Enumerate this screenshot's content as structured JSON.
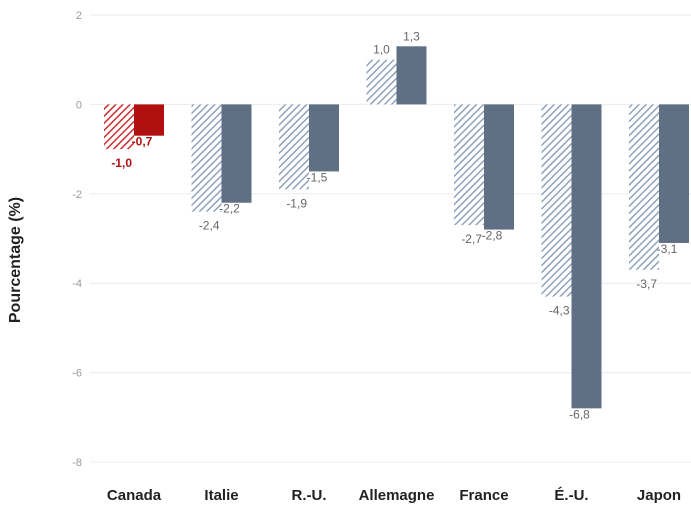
{
  "chart_data": {
    "type": "bar",
    "categories": [
      "Canada",
      "Italie",
      "R.-U.",
      "Allemagne",
      "France",
      "É.-U.",
      "Japon"
    ],
    "series": [
      {
        "style": "hatched",
        "values": [
          -1.0,
          -2.4,
          -1.9,
          1.0,
          -2.7,
          -4.3,
          -3.7
        ],
        "labels": [
          "-1,0",
          "-2,4",
          "-1,9",
          "1,0",
          "-2,7",
          "-4,3",
          "-3,7"
        ]
      },
      {
        "style": "solid",
        "values": [
          -0.7,
          -2.2,
          -1.5,
          1.3,
          -2.8,
          -6.8,
          -3.1
        ],
        "labels": [
          "-0,7",
          "-2,2",
          "-1,5",
          "1,3",
          "-2,8",
          "-6,8",
          "-3,1"
        ]
      }
    ],
    "highlight_category": "Canada",
    "ylabel": "Pourcentage (%)",
    "ylim": [
      -8,
      2
    ],
    "yticks": [
      2,
      0,
      -2,
      -4,
      -6,
      -8
    ],
    "colors": {
      "solid": "#5f7085",
      "hatch": "#8fa2bd",
      "highlight": "#b01010",
      "highlight_hatch": "#c83030"
    }
  }
}
